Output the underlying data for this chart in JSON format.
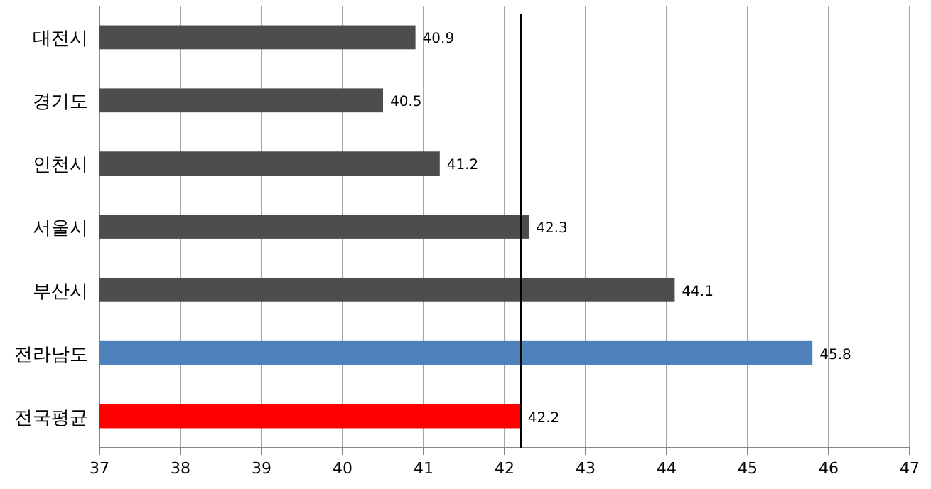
{
  "chart_data": {
    "type": "bar",
    "orientation": "horizontal",
    "categories": [
      "대전시",
      "경기도",
      "인천시",
      "서울시",
      "부산시",
      "전라남도",
      "전국평균"
    ],
    "values": [
      40.9,
      40.5,
      41.2,
      42.3,
      44.1,
      45.8,
      42.2
    ],
    "colors": [
      "#4d4d4d",
      "#4d4d4d",
      "#4d4d4d",
      "#4d4d4d",
      "#4d4d4d",
      "#4f81bd",
      "#ff0000"
    ],
    "xlim": [
      37,
      47
    ],
    "xticks": [
      37,
      38,
      39,
      40,
      41,
      42,
      43,
      44,
      45,
      46,
      47
    ],
    "grid": "x",
    "data_labels": true,
    "ref_lines": [
      {
        "axis": "x",
        "value": 42.2,
        "color": "#000000"
      }
    ]
  }
}
